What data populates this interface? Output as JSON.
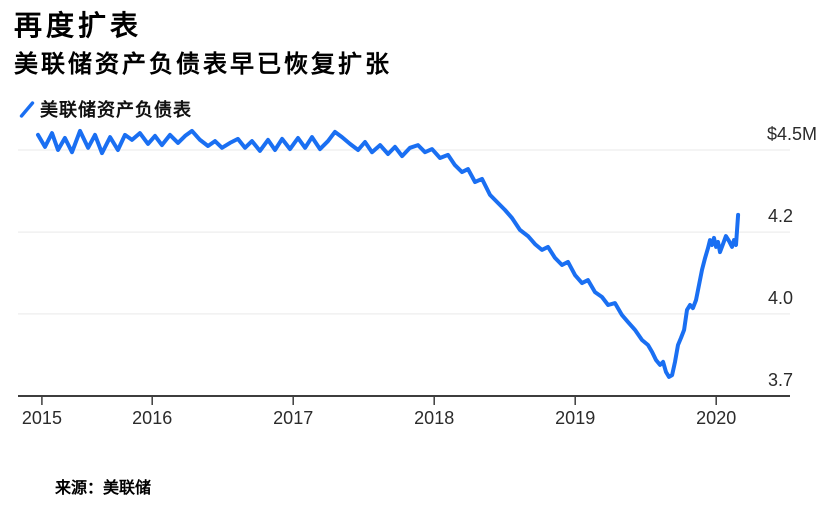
{
  "title": "再度扩表",
  "subtitle": "美联储资产负债表早已恢复扩张",
  "legend": {
    "label": "美联储资产负债表"
  },
  "source": {
    "text": "来源：美联储"
  },
  "colors": {
    "line": "#1a6ff2",
    "grid": "#e9e9e9",
    "axis": "#3d3d3d",
    "tick_text": "#2b2b2b",
    "heading_text": "#000000"
  },
  "chart_data": {
    "type": "line",
    "title": "再度扩表",
    "subtitle": "美联储资产负债表早已恢复扩张",
    "legend_entries": [
      "美联储资产负债表"
    ],
    "grid": true,
    "legend_position": "top-left",
    "x_axis": {
      "range": [
        2015.19,
        2020.17
      ],
      "ticks": [
        {
          "label": "2015",
          "t": 2015.218
        },
        {
          "label": "2016",
          "t": 2016
        },
        {
          "label": "2017",
          "t": 2017
        },
        {
          "label": "2018",
          "t": 2018
        },
        {
          "label": "2019",
          "t": 2019
        },
        {
          "label": "2020",
          "t": 2020
        }
      ]
    },
    "y_axis": {
      "range": [
        3.7,
        4.5
      ],
      "ticks": [
        {
          "label": "$4.5M",
          "value": 4.5
        },
        {
          "label": "4.2",
          "value": 4.233
        },
        {
          "label": "4.0",
          "value": 3.967
        },
        {
          "label": "3.7",
          "value": 3.7
        }
      ]
    },
    "series": [
      {
        "name": "美联储资产负债表",
        "color": "#1a6ff2",
        "points": [
          [
            2015.19,
            4.549
          ],
          [
            2015.24,
            4.51
          ],
          [
            2015.289,
            4.555
          ],
          [
            2015.332,
            4.5
          ],
          [
            2015.381,
            4.539
          ],
          [
            2015.431,
            4.493
          ],
          [
            2015.488,
            4.562
          ],
          [
            2015.545,
            4.507
          ],
          [
            2015.594,
            4.549
          ],
          [
            2015.644,
            4.49
          ],
          [
            2015.701,
            4.542
          ],
          [
            2015.757,
            4.5
          ],
          [
            2015.807,
            4.549
          ],
          [
            2015.857,
            4.533
          ],
          [
            2015.913,
            4.555
          ],
          [
            2015.97,
            4.52
          ],
          [
            2016.02,
            4.546
          ],
          [
            2016.069,
            4.516
          ],
          [
            2016.126,
            4.549
          ],
          [
            2016.183,
            4.523
          ],
          [
            2016.233,
            4.546
          ],
          [
            2016.282,
            4.562
          ],
          [
            2016.339,
            4.533
          ],
          [
            2016.396,
            4.513
          ],
          [
            2016.445,
            4.529
          ],
          [
            2016.495,
            4.507
          ],
          [
            2016.552,
            4.523
          ],
          [
            2016.608,
            4.536
          ],
          [
            2016.658,
            4.507
          ],
          [
            2016.708,
            4.529
          ],
          [
            2016.764,
            4.497
          ],
          [
            2016.821,
            4.533
          ],
          [
            2016.871,
            4.5
          ],
          [
            2016.921,
            4.536
          ],
          [
            2016.977,
            4.503
          ],
          [
            2017.034,
            4.539
          ],
          [
            2017.084,
            4.507
          ],
          [
            2017.133,
            4.542
          ],
          [
            2017.19,
            4.503
          ],
          [
            2017.247,
            4.529
          ],
          [
            2017.296,
            4.559
          ],
          [
            2017.346,
            4.542
          ],
          [
            2017.403,
            4.52
          ],
          [
            2017.46,
            4.5
          ],
          [
            2017.509,
            4.526
          ],
          [
            2017.559,
            4.493
          ],
          [
            2017.616,
            4.516
          ],
          [
            2017.672,
            4.487
          ],
          [
            2017.722,
            4.51
          ],
          [
            2017.772,
            4.48
          ],
          [
            2017.828,
            4.507
          ],
          [
            2017.885,
            4.516
          ],
          [
            2017.935,
            4.493
          ],
          [
            2017.984,
            4.503
          ],
          [
            2018.041,
            4.474
          ],
          [
            2018.098,
            4.484
          ],
          [
            2018.147,
            4.451
          ],
          [
            2018.197,
            4.428
          ],
          [
            2018.24,
            4.438
          ],
          [
            2018.289,
            4.396
          ],
          [
            2018.339,
            4.406
          ],
          [
            2018.396,
            4.354
          ],
          [
            2018.452,
            4.328
          ],
          [
            2018.502,
            4.305
          ],
          [
            2018.552,
            4.279
          ],
          [
            2018.608,
            4.24
          ],
          [
            2018.665,
            4.22
          ],
          [
            2018.715,
            4.194
          ],
          [
            2018.764,
            4.175
          ],
          [
            2018.807,
            4.185
          ],
          [
            2018.857,
            4.149
          ],
          [
            2018.906,
            4.126
          ],
          [
            2018.949,
            4.136
          ],
          [
            2018.999,
            4.093
          ],
          [
            2019.048,
            4.067
          ],
          [
            2019.091,
            4.077
          ],
          [
            2019.14,
            4.038
          ],
          [
            2019.19,
            4.022
          ],
          [
            2019.233,
            3.996
          ],
          [
            2019.282,
            4.002
          ],
          [
            2019.332,
            3.963
          ],
          [
            2019.374,
            3.941
          ],
          [
            2019.424,
            3.915
          ],
          [
            2019.474,
            3.882
          ],
          [
            2019.516,
            3.866
          ],
          [
            2019.545,
            3.843
          ],
          [
            2019.573,
            3.817
          ],
          [
            2019.601,
            3.801
          ],
          [
            2019.623,
            3.811
          ],
          [
            2019.644,
            3.778
          ],
          [
            2019.665,
            3.762
          ],
          [
            2019.687,
            3.768
          ],
          [
            2019.708,
            3.811
          ],
          [
            2019.729,
            3.866
          ],
          [
            2019.75,
            3.889
          ],
          [
            2019.772,
            3.915
          ],
          [
            2019.793,
            3.98
          ],
          [
            2019.814,
            3.996
          ],
          [
            2019.835,
            3.986
          ],
          [
            2019.857,
            4.012
          ],
          [
            2019.878,
            4.061
          ],
          [
            2019.899,
            4.11
          ],
          [
            2019.921,
            4.149
          ],
          [
            2019.942,
            4.181
          ],
          [
            2019.956,
            4.207
          ],
          [
            2019.97,
            4.191
          ],
          [
            2019.984,
            4.214
          ],
          [
            2019.999,
            4.185
          ],
          [
            2020.013,
            4.201
          ],
          [
            2020.027,
            4.168
          ],
          [
            2020.048,
            4.194
          ],
          [
            2020.069,
            4.22
          ],
          [
            2020.091,
            4.204
          ],
          [
            2020.112,
            4.185
          ],
          [
            2020.126,
            4.207
          ],
          [
            2020.14,
            4.191
          ],
          [
            2020.155,
            4.289
          ]
        ]
      }
    ]
  }
}
